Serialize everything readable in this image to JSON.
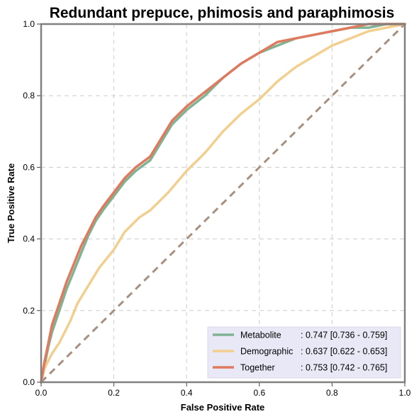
{
  "chart_data": {
    "type": "line",
    "title": "Redundant prepuce, phimosis and paraphimosis",
    "xlabel": "False Positive Rate",
    "ylabel": "True Positive Rate",
    "xlim": [
      0,
      1
    ],
    "ylim": [
      0,
      1
    ],
    "xticks": [
      "0.0",
      "0.2",
      "0.4",
      "0.6",
      "0.8",
      "1.0"
    ],
    "yticks": [
      "0.0",
      "0.2",
      "0.4",
      "0.6",
      "0.8",
      "1.0"
    ],
    "grid": true,
    "legend_position": "lower-right",
    "series": [
      {
        "name": "Metabolite",
        "name_padded": "Metabolite     ",
        "auc_text": ": 0.747 [0.736 - 0.759]",
        "color": "#7fb394",
        "x": [
          0,
          0.01,
          0.02,
          0.03,
          0.05,
          0.07,
          0.09,
          0.11,
          0.13,
          0.15,
          0.17,
          0.2,
          0.23,
          0.26,
          0.3,
          0.33,
          0.36,
          0.4,
          0.45,
          0.5,
          0.55,
          0.6,
          0.65,
          0.7,
          0.75,
          0.8,
          0.85,
          0.9,
          0.95,
          1.0
        ],
        "y": [
          0,
          0.05,
          0.1,
          0.14,
          0.2,
          0.26,
          0.31,
          0.36,
          0.41,
          0.45,
          0.48,
          0.52,
          0.56,
          0.59,
          0.62,
          0.67,
          0.72,
          0.76,
          0.8,
          0.85,
          0.89,
          0.92,
          0.94,
          0.96,
          0.97,
          0.98,
          0.99,
          0.99,
          1.0,
          1.0
        ]
      },
      {
        "name": "Demographic",
        "name_padded": "Demographic",
        "auc_text": ": 0.637 [0.622 - 0.653]",
        "color": "#f2cf8e",
        "x": [
          0,
          0.01,
          0.03,
          0.05,
          0.08,
          0.1,
          0.13,
          0.16,
          0.2,
          0.23,
          0.27,
          0.3,
          0.35,
          0.4,
          0.45,
          0.5,
          0.55,
          0.6,
          0.65,
          0.7,
          0.75,
          0.8,
          0.85,
          0.9,
          0.95,
          1.0
        ],
        "y": [
          0,
          0.04,
          0.08,
          0.11,
          0.17,
          0.22,
          0.27,
          0.32,
          0.37,
          0.42,
          0.46,
          0.48,
          0.53,
          0.59,
          0.64,
          0.7,
          0.75,
          0.79,
          0.84,
          0.88,
          0.91,
          0.94,
          0.96,
          0.98,
          0.99,
          1.0
        ]
      },
      {
        "name": "Together",
        "name_padded": "Together       ",
        "auc_text": ": 0.753 [0.742 - 0.765]",
        "color": "#e07a5f",
        "x": [
          0,
          0.01,
          0.02,
          0.03,
          0.05,
          0.07,
          0.09,
          0.11,
          0.13,
          0.15,
          0.17,
          0.2,
          0.23,
          0.26,
          0.3,
          0.33,
          0.36,
          0.4,
          0.45,
          0.5,
          0.55,
          0.6,
          0.65,
          0.7,
          0.75,
          0.8,
          0.85,
          0.9,
          0.95,
          1.0
        ],
        "y": [
          0,
          0.06,
          0.11,
          0.16,
          0.22,
          0.28,
          0.33,
          0.38,
          0.42,
          0.46,
          0.49,
          0.53,
          0.57,
          0.6,
          0.63,
          0.68,
          0.73,
          0.77,
          0.81,
          0.85,
          0.89,
          0.92,
          0.95,
          0.96,
          0.97,
          0.98,
          0.99,
          1.0,
          1.0,
          1.0
        ]
      }
    ],
    "reference_line": {
      "x": [
        0,
        1
      ],
      "y": [
        0,
        1
      ],
      "color": "#a89080"
    }
  }
}
